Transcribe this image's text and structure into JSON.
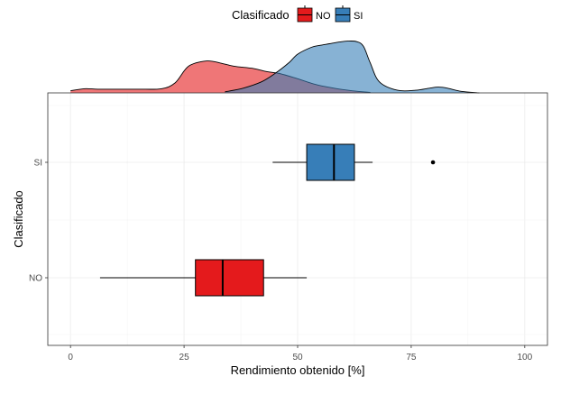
{
  "legend": {
    "title": "Clasificado",
    "entries": [
      {
        "label": "NO",
        "color": "#e41a1c"
      },
      {
        "label": "SI",
        "color": "#377eb8"
      }
    ]
  },
  "chart_data": {
    "type": "boxplot",
    "title": "",
    "xlabel": "Rendimiento obtenido [%]",
    "ylabel": "Clasificado",
    "xlim": [
      -5,
      105
    ],
    "x_ticks": [
      0,
      25,
      50,
      75,
      100
    ],
    "categories": [
      "SI",
      "NO"
    ],
    "grid": true,
    "legend_position": "top",
    "boxes": [
      {
        "name": "SI",
        "color": "#377eb8",
        "min": 44.5,
        "q1": 52,
        "median": 58,
        "q3": 62.5,
        "max": 66.5,
        "outliers": [
          79.8
        ]
      },
      {
        "name": "NO",
        "color": "#e41a1c",
        "min": 6.5,
        "q1": 27.5,
        "median": 33.5,
        "q3": 42.5,
        "max": 52,
        "outliers": []
      }
    ],
    "density": {
      "type": "area",
      "series": [
        {
          "name": "NO",
          "color": "#e41a1c",
          "x": [
            0,
            3,
            6,
            10,
            15,
            20,
            23,
            26,
            30,
            33,
            36,
            40,
            43,
            46,
            50,
            54,
            58,
            62,
            66
          ],
          "y": [
            0.04,
            0.08,
            0.07,
            0.07,
            0.07,
            0.08,
            0.19,
            0.51,
            0.61,
            0.57,
            0.51,
            0.47,
            0.41,
            0.37,
            0.27,
            0.16,
            0.09,
            0.04,
            0.01
          ]
        },
        {
          "name": "SI",
          "color": "#377eb8",
          "x": [
            34,
            38,
            42,
            45,
            48,
            50,
            53,
            55,
            57,
            59,
            61,
            63,
            64.5,
            66,
            68,
            72,
            76,
            79,
            81,
            83,
            86,
            90
          ],
          "y": [
            0.02,
            0.09,
            0.21,
            0.37,
            0.57,
            0.74,
            0.87,
            0.91,
            0.94,
            0.97,
            0.99,
            0.98,
            0.89,
            0.57,
            0.21,
            0.05,
            0.05,
            0.09,
            0.11,
            0.09,
            0.03,
            0.0
          ]
        }
      ]
    }
  }
}
